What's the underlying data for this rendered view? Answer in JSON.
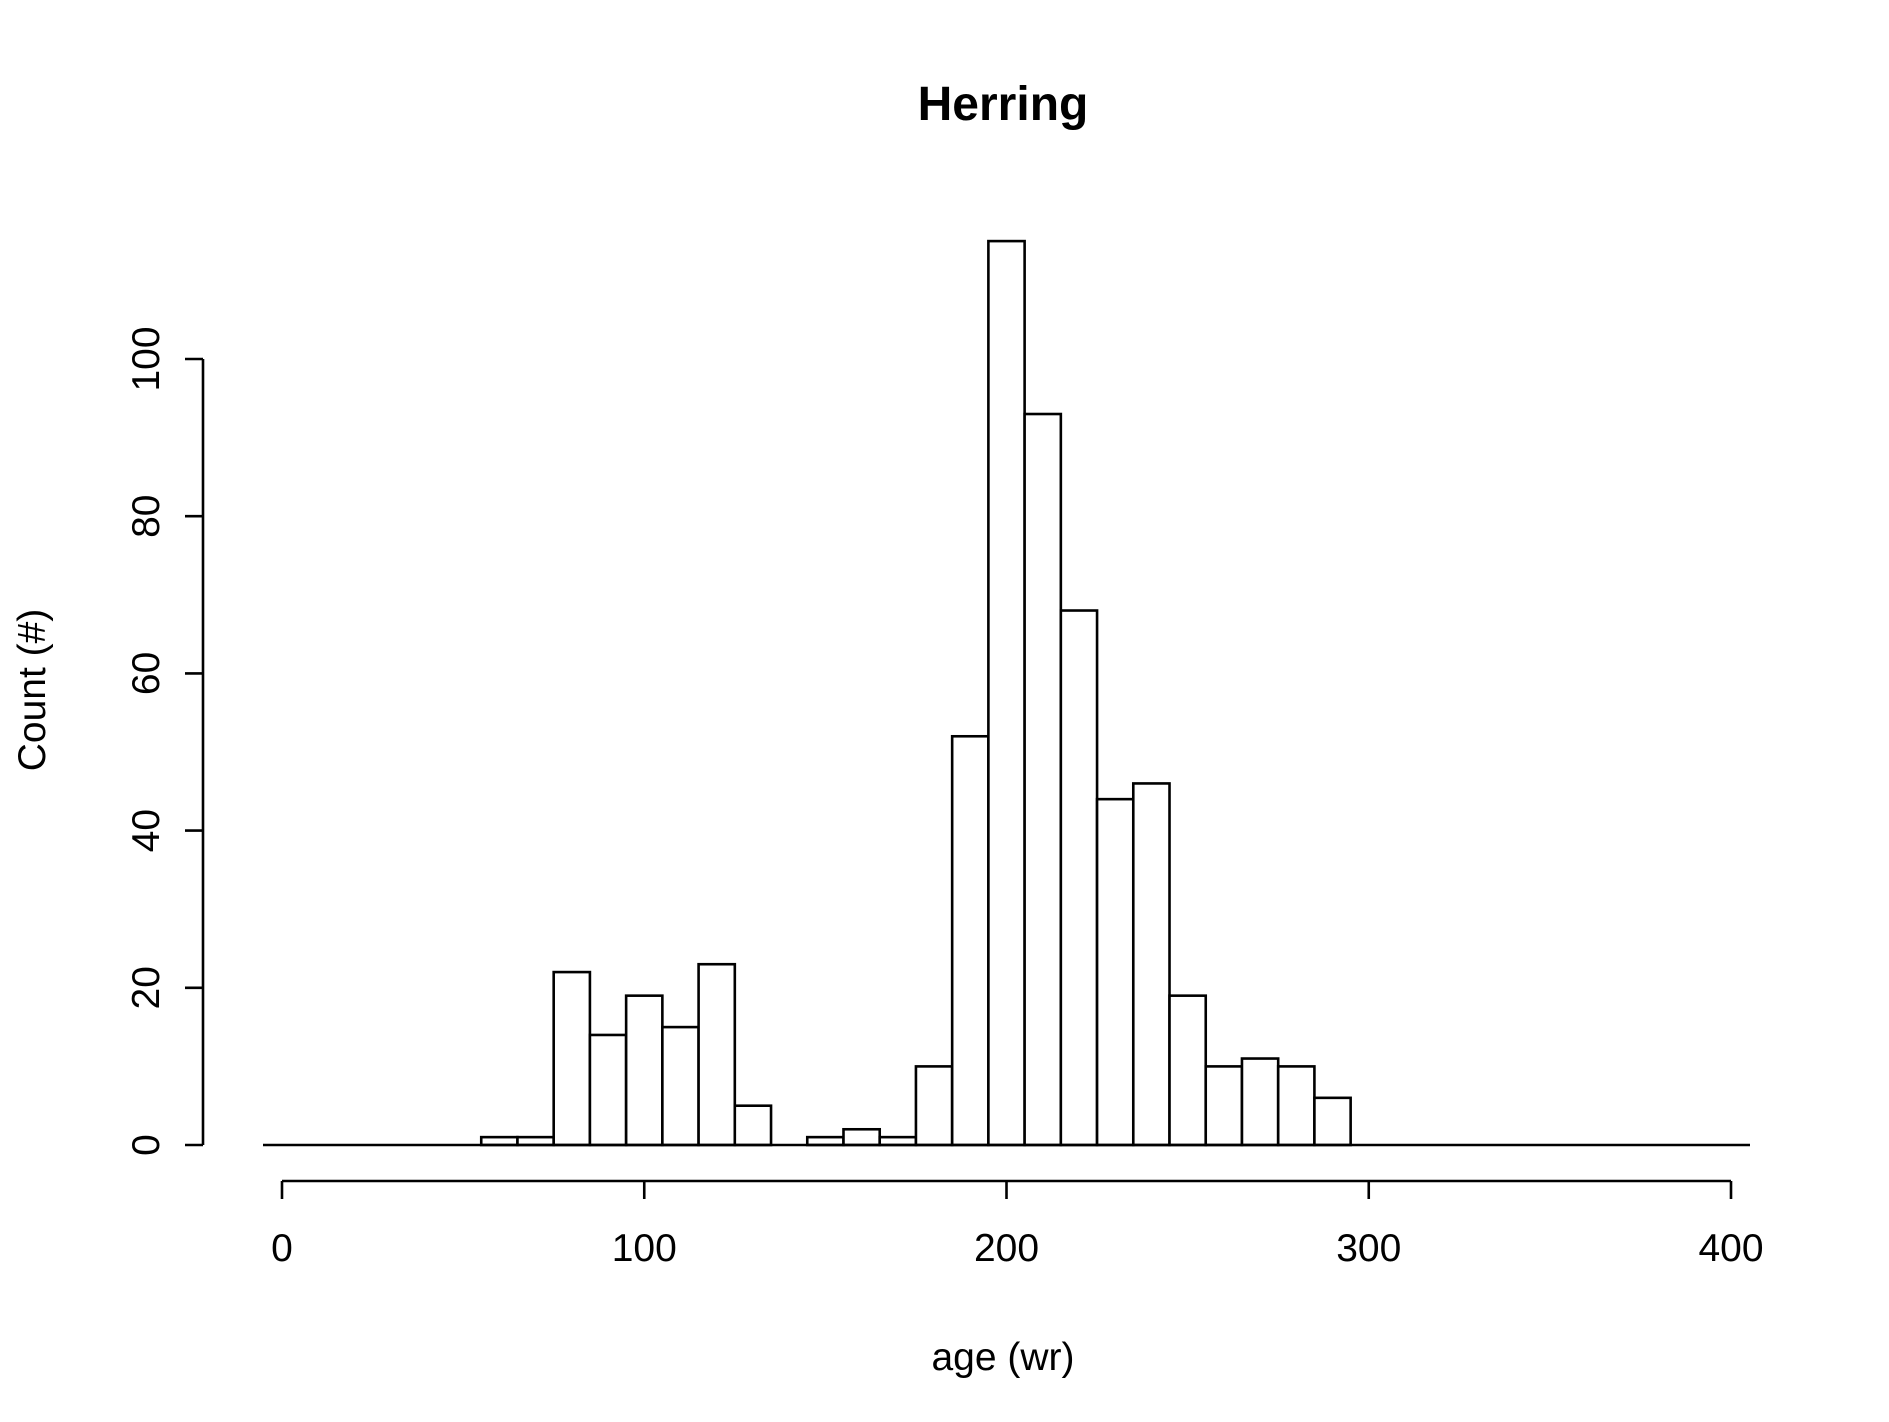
{
  "chart_data": {
    "type": "bar",
    "title": "Herring",
    "xlabel": "age (wr)",
    "ylabel": "Count (#)",
    "xlim": [
      0,
      400
    ],
    "ylim": [
      0,
      115
    ],
    "x_ticks": [
      "0",
      "100",
      "200",
      "300",
      "400"
    ],
    "y_ticks": [
      "0",
      "20",
      "40",
      "60",
      "80",
      "100"
    ],
    "bin_width": 10,
    "bins": [
      {
        "start": 55,
        "end": 65,
        "value": 1
      },
      {
        "start": 65,
        "end": 75,
        "value": 1
      },
      {
        "start": 75,
        "end": 85,
        "value": 22
      },
      {
        "start": 85,
        "end": 95,
        "value": 14
      },
      {
        "start": 95,
        "end": 105,
        "value": 19
      },
      {
        "start": 105,
        "end": 115,
        "value": 15
      },
      {
        "start": 115,
        "end": 125,
        "value": 23
      },
      {
        "start": 125,
        "end": 135,
        "value": 5
      },
      {
        "start": 135,
        "end": 145,
        "value": 0
      },
      {
        "start": 145,
        "end": 155,
        "value": 1
      },
      {
        "start": 155,
        "end": 165,
        "value": 2
      },
      {
        "start": 165,
        "end": 175,
        "value": 1
      },
      {
        "start": 175,
        "end": 185,
        "value": 10
      },
      {
        "start": 185,
        "end": 195,
        "value": 52
      },
      {
        "start": 195,
        "end": 205,
        "value": 115
      },
      {
        "start": 205,
        "end": 215,
        "value": 93
      },
      {
        "start": 215,
        "end": 225,
        "value": 68
      },
      {
        "start": 225,
        "end": 235,
        "value": 44
      },
      {
        "start": 235,
        "end": 245,
        "value": 46
      },
      {
        "start": 245,
        "end": 255,
        "value": 19
      },
      {
        "start": 255,
        "end": 265,
        "value": 10
      },
      {
        "start": 265,
        "end": 275,
        "value": 11
      },
      {
        "start": 275,
        "end": 285,
        "value": 10
      },
      {
        "start": 285,
        "end": 295,
        "value": 6
      }
    ],
    "grid": false,
    "legend": "none"
  }
}
